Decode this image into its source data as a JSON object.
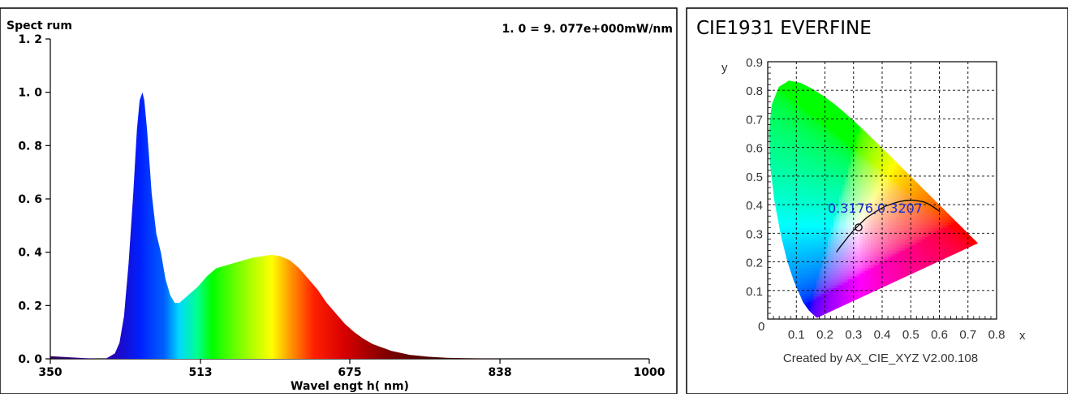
{
  "chart_data": [
    {
      "type": "area",
      "title": "Spect rum",
      "annotation": "1. 0  =  9. 077e+000mW/nm",
      "xlabel": "Wavel engt h( nm)",
      "xlim": [
        350,
        1000
      ],
      "ylim": [
        0,
        1.2
      ],
      "x_ticks": [
        {
          "value": 350,
          "label": "350"
        },
        {
          "value": 513,
          "label": "513"
        },
        {
          "value": 675,
          "label": "675"
        },
        {
          "value": 838,
          "label": "838"
        },
        {
          "value": 1000,
          "label": "1000"
        }
      ],
      "y_ticks": [
        {
          "value": 0,
          "label": "0. 0"
        },
        {
          "value": 0.2,
          "label": "0. 2"
        },
        {
          "value": 0.4,
          "label": "0. 4"
        },
        {
          "value": 0.6,
          "label": "0. 6"
        },
        {
          "value": 0.8,
          "label": "0. 8"
        },
        {
          "value": 1.0,
          "label": "1. 0"
        },
        {
          "value": 1.2,
          "label": "1. 2"
        }
      ],
      "series": [
        {
          "x": [
            350,
            400,
            410,
            420,
            425,
            430,
            435,
            440,
            444,
            447,
            450,
            452,
            455,
            458,
            460,
            465,
            470,
            475,
            480,
            485,
            490,
            500,
            510,
            520,
            530,
            540,
            550,
            560,
            570,
            580,
            590,
            600,
            610,
            620,
            630,
            640,
            650,
            660,
            670,
            680,
            690,
            700,
            720,
            740,
            760,
            780,
            800,
            850,
            900,
            1000
          ],
          "values": [
            0.01,
            0.0,
            0.0,
            0.02,
            0.06,
            0.16,
            0.36,
            0.62,
            0.86,
            0.97,
            1.0,
            0.97,
            0.86,
            0.72,
            0.62,
            0.47,
            0.4,
            0.3,
            0.24,
            0.21,
            0.21,
            0.24,
            0.27,
            0.31,
            0.34,
            0.35,
            0.36,
            0.37,
            0.38,
            0.385,
            0.39,
            0.385,
            0.37,
            0.34,
            0.3,
            0.26,
            0.21,
            0.17,
            0.13,
            0.1,
            0.075,
            0.055,
            0.03,
            0.015,
            0.008,
            0.004,
            0.002,
            0.0,
            0.0,
            0.0
          ]
        }
      ]
    },
    {
      "type": "scatter",
      "title": "CIE1931  EVERFINE",
      "xlabel": "x",
      "ylabel": "y",
      "xlim": [
        0,
        0.8
      ],
      "ylim": [
        0,
        0.9
      ],
      "x_tick_labels": [
        "0",
        "0.1",
        "0.2",
        "0.3",
        "0.4",
        "0.5",
        "0.6",
        "0.7",
        "0.8"
      ],
      "y_tick_labels": [
        "0.1",
        "0.2",
        "0.3",
        "0.4",
        "0.5",
        "0.6",
        "0.7",
        "0.8",
        "0.9"
      ],
      "grid": true,
      "point": {
        "x": 0.3176,
        "y": 0.3207,
        "label": "0.3176,0.3207"
      },
      "footer": "Created by AX_CIE_XYZ V2.00.108"
    }
  ],
  "colors": {
    "frame": "#000000",
    "point_label": "#1a2bd4",
    "planckian_locus": "#000000"
  }
}
